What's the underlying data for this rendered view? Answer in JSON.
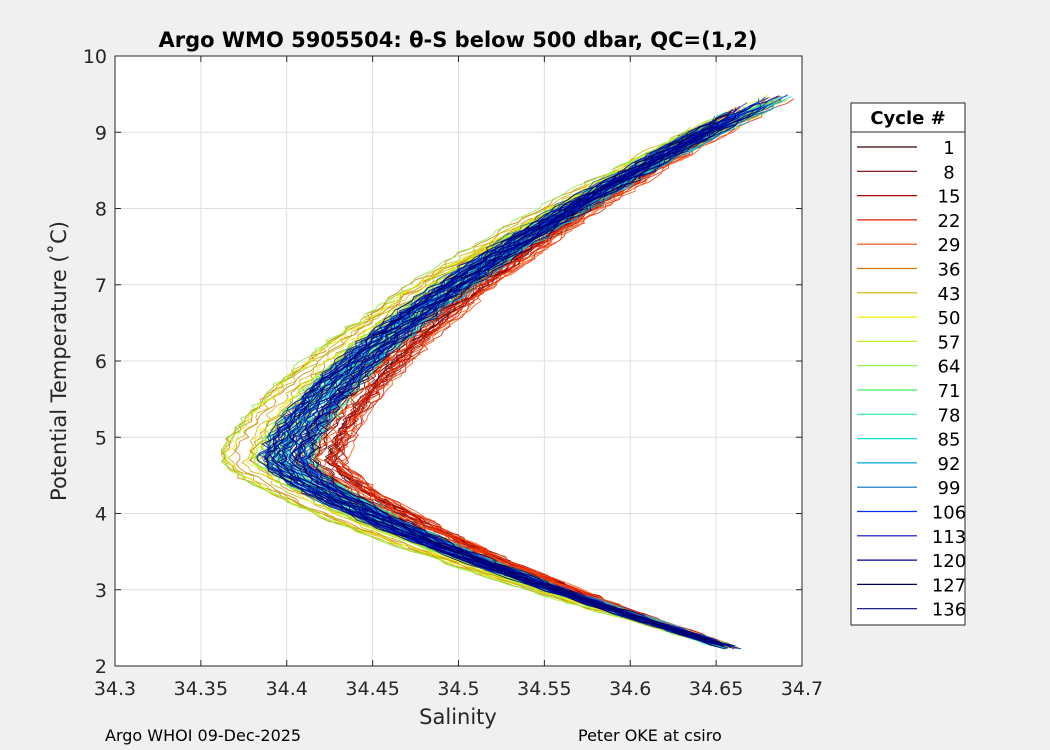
{
  "chart_data": {
    "type": "line",
    "title": "Argo WMO 5905504: θ-S below 500 dbar,  QC=(1,2)",
    "xlabel": "Salinity",
    "ylabel": "Potential Temperature (˚C)",
    "xlim": [
      34.3,
      34.7
    ],
    "ylim": [
      2,
      10
    ],
    "xticks": [
      "34.3",
      "34.35",
      "34.4",
      "34.45",
      "34.5",
      "34.55",
      "34.6",
      "34.65",
      "34.7"
    ],
    "yticks": [
      "2",
      "3",
      "4",
      "5",
      "6",
      "7",
      "8",
      "9",
      "10"
    ],
    "grid": true,
    "legend": {
      "title": "Cycle #",
      "placement": "outside-right",
      "entries": [
        "1",
        "8",
        "15",
        "22",
        "29",
        "36",
        "43",
        "50",
        "57",
        "64",
        "71",
        "78",
        "85",
        "92",
        "99",
        "106",
        "113",
        "120",
        "127",
        "136"
      ],
      "colors": [
        "#380000",
        "#6b0000",
        "#b00000",
        "#e01c00",
        "#ff4a00",
        "#d07800",
        "#c8b000",
        "#f0f000",
        "#c0f020",
        "#80f040",
        "#40f060",
        "#20f0a0",
        "#10e0e0",
        "#00a8d8",
        "#0070c0",
        "#0030f0",
        "#0010c0",
        "#00009a",
        "#000060",
        "#00007a"
      ]
    },
    "series_shape": {
      "description": "theta-S profiles forming a C-shaped curve",
      "upper_end": {
        "salinity": 34.69,
        "temperature": 9.45
      },
      "lower_end": {
        "salinity": 34.66,
        "temperature": 2.22
      },
      "min_salinity_at_temperature": 4.7,
      "min_salinity_range": [
        34.36,
        34.44
      ]
    },
    "colors": {
      "background": "#f0f0f0",
      "plot_bg": "#ffffff",
      "grid": "#dfdfdf"
    }
  },
  "footer": {
    "left": "Argo WHOI 09-Dec-2025",
    "right": "Peter OKE at csiro"
  }
}
